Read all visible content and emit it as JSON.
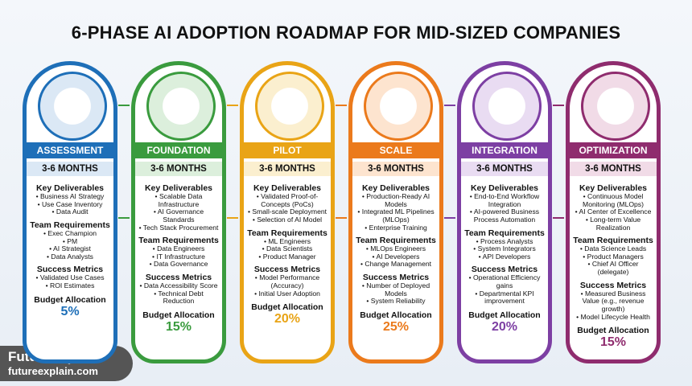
{
  "title": "6-PHASE AI ADOPTION ROADMAP FOR MID-SIZED COMPANIES",
  "phases": [
    {
      "name": "ASSESSMENT",
      "duration": "3-6 MONTHS",
      "sections": [
        {
          "heading": "Key Deliverables",
          "items": [
            "Business AI Strategy",
            "Use Case Inventory",
            "Data Audit"
          ]
        },
        {
          "heading": "Team Requirements",
          "items": [
            "Exec Champion",
            "PM",
            "AI Strategist",
            "Data Analysts"
          ]
        },
        {
          "heading": "Success Metrics",
          "items": [
            "Validated Use Cases",
            "ROI Estimates"
          ]
        }
      ],
      "budget_label": "Budget Allocation",
      "budget": "5%"
    },
    {
      "name": "FOUNDATION",
      "duration": "3-6 MONTHS",
      "sections": [
        {
          "heading": "Key Deliverables",
          "items": [
            "Scalable Data Infrastructure",
            "AI Governance Standards",
            "Tech Stack Procurement"
          ]
        },
        {
          "heading": "Team Requirements",
          "items": [
            "Data Engineers",
            "IT Infrastructure",
            "Data Governance"
          ]
        },
        {
          "heading": "Success Metrics",
          "items": [
            "Data Accessibility Score",
            "Technical Debt Reduction"
          ]
        }
      ],
      "budget_label": "Budget Allocation",
      "budget": "15%"
    },
    {
      "name": "PILOT",
      "duration": "3-6 MONTHS",
      "sections": [
        {
          "heading": "Key Deliverables",
          "items": [
            "Validated Proof-of-Concepts (PoCs)",
            "Small-scale Deployment",
            "Selection of AI Model"
          ]
        },
        {
          "heading": "Team Requirements",
          "items": [
            "ML Engineers",
            "Data Scientists",
            "Product Manager"
          ]
        },
        {
          "heading": "Success Metrics",
          "items": [
            "Model Performance (Accuracy)",
            "Initial User Adoption"
          ]
        }
      ],
      "budget_label": "Budget Allocation",
      "budget": "20%"
    },
    {
      "name": "SCALE",
      "duration": "3-6 MONTHS",
      "sections": [
        {
          "heading": "Key Deliverables",
          "items": [
            "Production-Ready AI Models",
            "Integrated ML Pipelines (MLOps)",
            "Enterprise Training"
          ]
        },
        {
          "heading": "Team Requirements",
          "items": [
            "MLOps Engineers",
            "AI Developers",
            "Change Management"
          ]
        },
        {
          "heading": "Success Metrics",
          "items": [
            "Number of Deployed Models",
            "System Reliability"
          ]
        }
      ],
      "budget_label": "Budget Allocation",
      "budget": "25%"
    },
    {
      "name": "INTEGRATION",
      "duration": "3-6 MONTHS",
      "sections": [
        {
          "heading": "Key Deliverables",
          "items": [
            "End-to-End Workflow Integration",
            "AI-powered Business Process Automation"
          ]
        },
        {
          "heading": "Team Requirements",
          "items": [
            "Process Analysts",
            "System Integrators",
            "API Developers"
          ]
        },
        {
          "heading": "Success Metrics",
          "items": [
            "Operational Efficiency gains",
            "Departmental KPI improvement"
          ]
        }
      ],
      "budget_label": "Budget Allocation",
      "budget": "20%"
    },
    {
      "name": "OPTIMIZATION",
      "duration": "3-6 MONTHS",
      "sections": [
        {
          "heading": "Key Deliverables",
          "items": [
            "Continuous Model Monitoring (MLOps)",
            "AI Center of Excellence",
            "Long-term Value Realization"
          ]
        },
        {
          "heading": "Team Requirements",
          "items": [
            "Data Science Leads",
            "Product Managers",
            "Chief AI Officer (delegate)"
          ]
        },
        {
          "heading": "Success Metrics",
          "items": [
            "Measured Business Value (e.g., revenue growth)",
            "Model Lifecycle Health"
          ]
        }
      ],
      "budget_label": "Budget Allocation",
      "budget": "15%"
    }
  ],
  "watermark": {
    "brand": "FutureExplain",
    "url": "futureexplain.com"
  }
}
